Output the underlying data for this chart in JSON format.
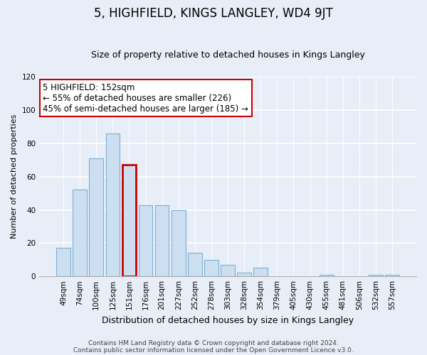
{
  "title": "5, HIGHFIELD, KINGS LANGLEY, WD4 9JT",
  "subtitle": "Size of property relative to detached houses in Kings Langley",
  "xlabel": "Distribution of detached houses by size in Kings Langley",
  "ylabel": "Number of detached properties",
  "categories": [
    "49sqm",
    "74sqm",
    "100sqm",
    "125sqm",
    "151sqm",
    "176sqm",
    "201sqm",
    "227sqm",
    "252sqm",
    "278sqm",
    "303sqm",
    "328sqm",
    "354sqm",
    "379sqm",
    "405sqm",
    "430sqm",
    "455sqm",
    "481sqm",
    "506sqm",
    "532sqm",
    "557sqm"
  ],
  "values": [
    17,
    52,
    71,
    86,
    67,
    43,
    43,
    40,
    14,
    10,
    7,
    2,
    5,
    0,
    0,
    0,
    1,
    0,
    0,
    1,
    1
  ],
  "bar_color": "#ccdff0",
  "bar_edge_color": "#7ab0d4",
  "highlight_bar_index": 4,
  "highlight_bar_edge_color": "#cc0000",
  "annotation_title": "5 HIGHFIELD: 152sqm",
  "annotation_line1": "← 55% of detached houses are smaller (226)",
  "annotation_line2": "45% of semi-detached houses are larger (185) →",
  "annotation_box_edge_color": "#cc0000",
  "ylim": [
    0,
    120
  ],
  "yticks": [
    0,
    20,
    40,
    60,
    80,
    100,
    120
  ],
  "footnote1": "Contains HM Land Registry data © Crown copyright and database right 2024.",
  "footnote2": "Contains public sector information licensed under the Open Government Licence v3.0.",
  "background_color": "#e8eef8",
  "plot_bg_color": "#e8eef8",
  "title_fontsize": 12,
  "subtitle_fontsize": 9,
  "xlabel_fontsize": 9,
  "ylabel_fontsize": 8,
  "tick_fontsize": 7.5,
  "annotation_fontsize": 8.5,
  "footnote_fontsize": 6.5
}
